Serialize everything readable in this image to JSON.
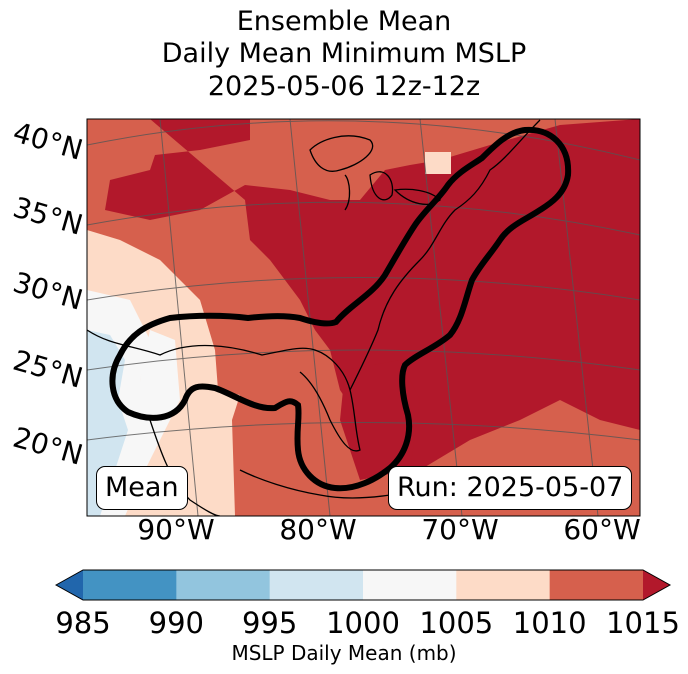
{
  "title_lines": [
    "Ensemble Mean",
    "Daily Mean Minimum MSLP",
    "2025-05-06 12z-12z"
  ],
  "lat_labels": [
    "40°N",
    "35°N",
    "30°N",
    "25°N",
    "20°N"
  ],
  "lon_labels": [
    "90°W",
    "80°W",
    "70°W",
    "60°W"
  ],
  "left_box": "Mean",
  "right_box": "Run: 2025-05-07",
  "colorbar": {
    "ticks": [
      "985",
      "990",
      "995",
      "1000",
      "1005",
      "1010",
      "1015"
    ],
    "label": "MSLP Daily Mean (mb)",
    "colors": [
      "#2166ac",
      "#4393c3",
      "#92c5de",
      "#d1e5f0",
      "#f7f7f7",
      "#fddbc7",
      "#d6604d",
      "#b2182b"
    ],
    "extend": "both"
  },
  "map": {
    "projection": "lambert-conformal",
    "extent": {
      "lon": [
        -97,
        -58
      ],
      "lat": [
        18,
        41
      ]
    },
    "field": "MSLP daily mean minimum (mb)",
    "highlight_contour_color": "#000000"
  }
}
